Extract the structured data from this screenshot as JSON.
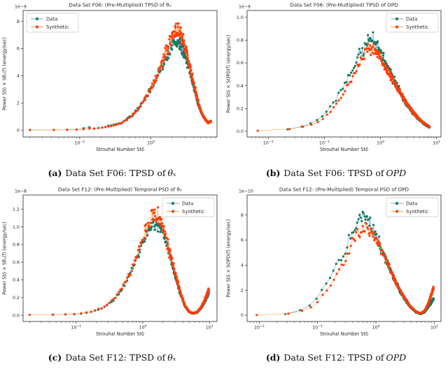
{
  "page": {
    "background": "#ffffff"
  },
  "colors": {
    "axis": "#262626",
    "text": "#262626",
    "legend_border": "#c9c9c9",
    "data_marker": "#107a60",
    "data_line": "#74a9d0",
    "synthetic_marker": "#ff3c0a",
    "synthetic_line": "#ffa559"
  },
  "captions": [
    {
      "label": "(a)",
      "text": "Data Set F06: TPSD of",
      "math": "θₓ"
    },
    {
      "label": "(b)",
      "text": "Data Set F06: TPSD of",
      "math": "OPD"
    },
    {
      "label": "(c)",
      "text": "Data Set F12: TPSD of",
      "math": "θₓ"
    },
    {
      "label": "(d)",
      "text": "Data Set F12: TPSD of",
      "math": "OPD"
    }
  ],
  "chart_data": [
    {
      "type": "scatter",
      "title": "Data Set F06: (Pre-Multiplied) TPSD of θₓ",
      "xlabel": "Strouhal Number Stδ",
      "ylabel": "Power Stδ × Sθₓ(f) (energy/sec)",
      "offset_label": "1e−9",
      "xscale": "log",
      "xlim": [
        0.016,
        8.5
      ],
      "ylim": [
        -0.5,
        8.8
      ],
      "xtick_exponents": [
        -1,
        0
      ],
      "yticks": [
        0,
        2,
        4,
        6,
        8
      ],
      "ytick_labels": [
        "0",
        "2",
        "4",
        "6",
        "8"
      ],
      "legend_loc": "upper-left",
      "grid": false,
      "series": [
        {
          "name": "Data",
          "x_range": [
            0.02,
            7.0
          ],
          "n_scatter": 300,
          "noise": 0.1,
          "seed": 7,
          "curve": [
            [
              0.02,
              0.02
            ],
            [
              0.06,
              0.03
            ],
            [
              0.1,
              0.06
            ],
            [
              0.13,
              0.22
            ],
            [
              0.16,
              0.12
            ],
            [
              0.2,
              0.18
            ],
            [
              0.3,
              0.38
            ],
            [
              0.4,
              0.56
            ],
            [
              0.5,
              0.95
            ],
            [
              0.65,
              1.5
            ],
            [
              0.8,
              2.1
            ],
            [
              1.0,
              3.0
            ],
            [
              1.3,
              4.2
            ],
            [
              1.6,
              5.2
            ],
            [
              1.9,
              6.0
            ],
            [
              2.2,
              6.5
            ],
            [
              2.5,
              6.4
            ],
            [
              2.9,
              5.8
            ],
            [
              3.4,
              4.6
            ],
            [
              4.0,
              3.2
            ],
            [
              4.6,
              2.0
            ],
            [
              5.2,
              1.2
            ],
            [
              5.8,
              0.8
            ],
            [
              6.4,
              0.55
            ],
            [
              7.0,
              0.65
            ]
          ]
        },
        {
          "name": "Synthetic",
          "x_range": [
            0.02,
            7.0
          ],
          "n_scatter": 300,
          "noise": 0.11,
          "seed": 23,
          "curve": [
            [
              0.02,
              0.02
            ],
            [
              0.06,
              0.03
            ],
            [
              0.1,
              0.05
            ],
            [
              0.15,
              0.1
            ],
            [
              0.2,
              0.17
            ],
            [
              0.3,
              0.34
            ],
            [
              0.4,
              0.55
            ],
            [
              0.5,
              0.95
            ],
            [
              0.65,
              1.5
            ],
            [
              0.8,
              2.15
            ],
            [
              1.0,
              3.1
            ],
            [
              1.3,
              4.4
            ],
            [
              1.6,
              5.6
            ],
            [
              1.9,
              6.7
            ],
            [
              2.2,
              7.4
            ],
            [
              2.5,
              7.3
            ],
            [
              2.9,
              6.5
            ],
            [
              3.4,
              5.0
            ],
            [
              4.0,
              3.4
            ],
            [
              4.6,
              2.1
            ],
            [
              5.2,
              1.25
            ],
            [
              5.8,
              0.8
            ],
            [
              6.4,
              0.55
            ],
            [
              7.0,
              0.65
            ]
          ]
        }
      ]
    },
    {
      "type": "scatter",
      "title": "Data Set F06: (Pre-Multiplied) TPSD of OPD",
      "xlabel": "Strouhal Number Stδ",
      "ylabel": "Power Stδ × SOPD(f) (energy/sec)",
      "offset_label": "1e−9",
      "xscale": "log",
      "xlim": [
        0.0042,
        12
      ],
      "ylim": [
        -0.05,
        1.06
      ],
      "xtick_exponents": [
        -2,
        -1,
        0,
        1
      ],
      "yticks": [
        0.0,
        0.2,
        0.4,
        0.6,
        0.8,
        1.0
      ],
      "ytick_labels": [
        "0.0",
        "0.2",
        "0.4",
        "0.6",
        "0.8",
        "1.0"
      ],
      "legend_loc": "upper-right",
      "grid": false,
      "series": [
        {
          "name": "Data",
          "x_range": [
            0.022,
            7.5
          ],
          "n_scatter": 430,
          "noise": 0.11,
          "seed": 41,
          "curve": [
            [
              0.022,
              0.016
            ],
            [
              0.03,
              0.025
            ],
            [
              0.05,
              0.055
            ],
            [
              0.07,
              0.09
            ],
            [
              0.1,
              0.155
            ],
            [
              0.14,
              0.24
            ],
            [
              0.2,
              0.36
            ],
            [
              0.27,
              0.47
            ],
            [
              0.35,
              0.58
            ],
            [
              0.45,
              0.68
            ],
            [
              0.55,
              0.76
            ],
            [
              0.65,
              0.82
            ],
            [
              0.75,
              0.8
            ],
            [
              0.9,
              0.74
            ],
            [
              1.1,
              0.64
            ],
            [
              1.4,
              0.54
            ],
            [
              1.8,
              0.43
            ],
            [
              2.3,
              0.33
            ],
            [
              3.0,
              0.23
            ],
            [
              4.0,
              0.15
            ],
            [
              5.0,
              0.1
            ],
            [
              6.0,
              0.065
            ],
            [
              7.5,
              0.035
            ]
          ]
        },
        {
          "name": "Synthetic",
          "x_range": [
            0.0065,
            7.5
          ],
          "n_scatter": 430,
          "noise": 0.09,
          "seed": 53,
          "curve": [
            [
              0.0065,
              0.005
            ],
            [
              0.012,
              0.008
            ],
            [
              0.02,
              0.014
            ],
            [
              0.03,
              0.022
            ],
            [
              0.05,
              0.045
            ],
            [
              0.07,
              0.07
            ],
            [
              0.1,
              0.12
            ],
            [
              0.14,
              0.19
            ],
            [
              0.2,
              0.3
            ],
            [
              0.27,
              0.42
            ],
            [
              0.35,
              0.53
            ],
            [
              0.45,
              0.63
            ],
            [
              0.55,
              0.7
            ],
            [
              0.65,
              0.73
            ],
            [
              0.75,
              0.72
            ],
            [
              0.9,
              0.68
            ],
            [
              1.1,
              0.6
            ],
            [
              1.4,
              0.51
            ],
            [
              1.8,
              0.42
            ],
            [
              2.3,
              0.33
            ],
            [
              3.0,
              0.235
            ],
            [
              4.0,
              0.155
            ],
            [
              5.0,
              0.105
            ],
            [
              6.0,
              0.07
            ],
            [
              7.5,
              0.04
            ]
          ]
        }
      ]
    },
    {
      "type": "scatter",
      "title": "Data Set F12: (Pre-Multiplied) Temporal PSD of θₓ",
      "xlabel": "Strouhal Number Stδ",
      "ylabel": "Power Stδ × Sθₓ(f) (energy/sec)",
      "offset_label": "1e−8",
      "xscale": "log",
      "xlim": [
        0.016,
        13
      ],
      "ylim": [
        -0.07,
        1.36
      ],
      "xtick_exponents": [
        -1,
        0,
        1
      ],
      "yticks": [
        0.0,
        0.2,
        0.4,
        0.6,
        0.8,
        1.0,
        1.2
      ],
      "ytick_labels": [
        "0.0",
        "0.2",
        "0.4",
        "0.6",
        "0.8",
        "1.0",
        "1.2"
      ],
      "legend_loc": "upper-right",
      "grid": false,
      "series": [
        {
          "name": "Data",
          "x_range": [
            0.045,
            9.8
          ],
          "n_scatter": 400,
          "noise": 0.08,
          "seed": 77,
          "curve": [
            [
              0.045,
              0.007
            ],
            [
              0.08,
              0.01
            ],
            [
              0.12,
              0.02
            ],
            [
              0.17,
              0.04
            ],
            [
              0.25,
              0.08
            ],
            [
              0.35,
              0.16
            ],
            [
              0.45,
              0.26
            ],
            [
              0.6,
              0.42
            ],
            [
              0.8,
              0.63
            ],
            [
              1.0,
              0.82
            ],
            [
              1.25,
              0.97
            ],
            [
              1.5,
              1.04
            ],
            [
              1.8,
              1.02
            ],
            [
              2.1,
              0.9
            ],
            [
              2.5,
              0.7
            ],
            [
              3.0,
              0.47
            ],
            [
              3.6,
              0.26
            ],
            [
              4.3,
              0.1
            ],
            [
              5.0,
              0.035
            ],
            [
              5.7,
              0.02
            ],
            [
              6.5,
              0.03
            ],
            [
              7.5,
              0.08
            ],
            [
              8.5,
              0.15
            ],
            [
              9.8,
              0.25
            ]
          ]
        },
        {
          "name": "Synthetic",
          "x_range": [
            0.02,
            9.8
          ],
          "n_scatter": 400,
          "noise": 0.11,
          "seed": 91,
          "curve": [
            [
              0.02,
              0.005
            ],
            [
              0.05,
              0.008
            ],
            [
              0.08,
              0.012
            ],
            [
              0.12,
              0.02
            ],
            [
              0.17,
              0.04
            ],
            [
              0.25,
              0.085
            ],
            [
              0.35,
              0.165
            ],
            [
              0.45,
              0.27
            ],
            [
              0.6,
              0.43
            ],
            [
              0.8,
              0.65
            ],
            [
              1.0,
              0.86
            ],
            [
              1.25,
              1.04
            ],
            [
              1.5,
              1.14
            ],
            [
              1.8,
              1.1
            ],
            [
              2.1,
              0.96
            ],
            [
              2.5,
              0.74
            ],
            [
              3.0,
              0.5
            ],
            [
              3.6,
              0.28
            ],
            [
              4.3,
              0.11
            ],
            [
              5.0,
              0.04
            ],
            [
              5.7,
              0.025
            ],
            [
              6.5,
              0.035
            ],
            [
              7.5,
              0.09
            ],
            [
              8.5,
              0.17
            ],
            [
              9.8,
              0.29
            ]
          ]
        }
      ]
    },
    {
      "type": "scatter",
      "title": "Data Set F12: (Pre-Multiplied) Temporal PSD of OPD",
      "xlabel": "Strouhal Number Stδ",
      "ylabel": "Power Stδ × SOPD(f) (energy/sec)",
      "offset_label": "1e−10",
      "xscale": "log",
      "xlim": [
        0.0062,
        13
      ],
      "ylim": [
        -0.5,
        9.6
      ],
      "xtick_exponents": [
        -2,
        -1,
        0,
        1
      ],
      "yticks": [
        0,
        2,
        4,
        6,
        8
      ],
      "ytick_labels": [
        "0",
        "2",
        "4",
        "6",
        "8"
      ],
      "legend_loc": "upper-right",
      "grid": false,
      "series": [
        {
          "name": "Data",
          "x_range": [
            0.028,
            9.7
          ],
          "n_scatter": 430,
          "noise": 0.1,
          "seed": 113,
          "curve": [
            [
              0.028,
              0.09
            ],
            [
              0.04,
              0.2
            ],
            [
              0.06,
              0.5
            ],
            [
              0.08,
              0.9
            ],
            [
              0.1,
              1.4
            ],
            [
              0.13,
              2.2
            ],
            [
              0.17,
              3.2
            ],
            [
              0.22,
              4.2
            ],
            [
              0.28,
              5.1
            ],
            [
              0.35,
              6.0
            ],
            [
              0.45,
              7.2
            ],
            [
              0.55,
              7.9
            ],
            [
              0.65,
              7.9
            ],
            [
              0.75,
              7.5
            ],
            [
              0.9,
              6.9
            ],
            [
              1.1,
              5.9
            ],
            [
              1.4,
              4.7
            ],
            [
              1.8,
              3.5
            ],
            [
              2.3,
              2.4
            ],
            [
              3.0,
              1.4
            ],
            [
              3.8,
              0.7
            ],
            [
              4.8,
              0.25
            ],
            [
              5.8,
              0.1
            ],
            [
              6.8,
              0.25
            ],
            [
              8.0,
              0.7
            ],
            [
              9.7,
              1.3
            ]
          ]
        },
        {
          "name": "Synthetic",
          "x_range": [
            0.009,
            9.7
          ],
          "n_scatter": 430,
          "noise": 0.09,
          "seed": 131,
          "curve": [
            [
              0.009,
              0.02
            ],
            [
              0.015,
              0.04
            ],
            [
              0.025,
              0.08
            ],
            [
              0.04,
              0.18
            ],
            [
              0.06,
              0.4
            ],
            [
              0.08,
              0.7
            ],
            [
              0.1,
              1.1
            ],
            [
              0.13,
              1.7
            ],
            [
              0.17,
              2.4
            ],
            [
              0.22,
              3.3
            ],
            [
              0.28,
              4.2
            ],
            [
              0.35,
              5.2
            ],
            [
              0.45,
              6.3
            ],
            [
              0.55,
              6.9
            ],
            [
              0.65,
              7.0
            ],
            [
              0.75,
              6.9
            ],
            [
              0.9,
              6.5
            ],
            [
              1.1,
              5.8
            ],
            [
              1.4,
              4.7
            ],
            [
              1.8,
              3.5
            ],
            [
              2.3,
              2.4
            ],
            [
              3.0,
              1.5
            ],
            [
              3.8,
              0.75
            ],
            [
              4.8,
              0.3
            ],
            [
              5.8,
              0.15
            ],
            [
              6.8,
              0.35
            ],
            [
              8.0,
              1.0
            ],
            [
              9.7,
              2.2
            ]
          ]
        }
      ]
    }
  ]
}
